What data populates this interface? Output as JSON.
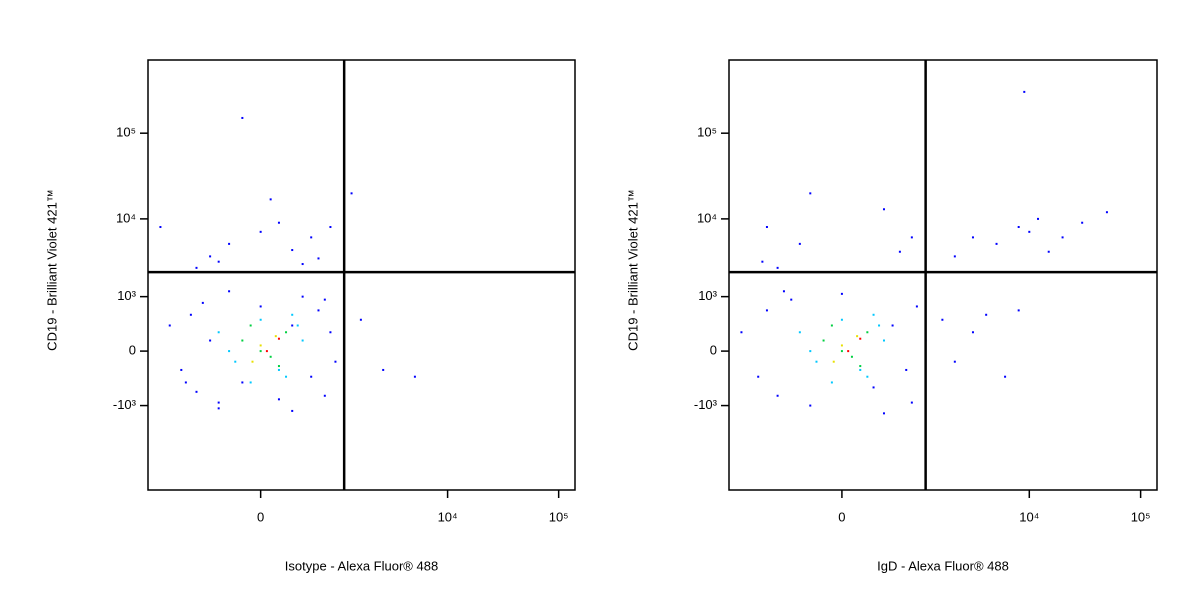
{
  "chart_data": [
    {
      "type": "scatter",
      "x_label": "Isotype - Alexa Fluor® 488",
      "y_label": "CD19 - Brilliant Violet 421™",
      "scale": "biexponential",
      "xlim": [
        -2000,
        140000
      ],
      "ylim": [
        -12000,
        700000
      ],
      "xticks": [
        0,
        {
          "value": 10000,
          "label": "10⁴"
        },
        {
          "value": 100000,
          "label": "10⁵"
        }
      ],
      "yticks": [
        {
          "value": -1000,
          "label": "-10³"
        },
        0,
        {
          "value": 1000,
          "label": "10³"
        },
        {
          "value": 10000,
          "label": "10⁴"
        },
        {
          "value": 100000,
          "label": "10⁵"
        }
      ],
      "quadrant": {
        "x": 1000,
        "y": 2200
      },
      "series": [
        {
          "color": "#0000ff",
          "x": [
            -1200,
            -900,
            -700,
            -600,
            -500,
            -400,
            -300,
            -200,
            -100,
            0,
            100,
            200,
            300,
            400,
            500,
            600,
            700,
            800,
            -800,
            -300,
            200,
            600,
            1500,
            2500,
            5000,
            -400,
            -200,
            0,
            200,
            400,
            -300,
            100,
            300,
            500,
            -100,
            50,
            -600,
            700,
            1200,
            -1500
          ],
          "y": [
            300,
            -200,
            500,
            -600,
            800,
            100,
            -900,
            1200,
            -400,
            700,
            -800,
            300,
            1000,
            -300,
            600,
            -700,
            200,
            -100,
            -400,
            -1100,
            -1200,
            900,
            400,
            -200,
            -300,
            3500,
            5000,
            7000,
            4200,
            6000,
            3000,
            9000,
            2800,
            3300,
            150000,
            17000,
            2500,
            8000,
            20000,
            8000
          ]
        },
        {
          "color": "#00c8ff",
          "x": [
            -300,
            -150,
            0,
            150,
            300,
            -200,
            100,
            250,
            -50,
            200
          ],
          "y": [
            200,
            -100,
            400,
            -300,
            100,
            0,
            -200,
            300,
            -400,
            500
          ]
        },
        {
          "color": "#00d040",
          "x": [
            -100,
            50,
            150,
            0,
            -50,
            100
          ],
          "y": [
            100,
            -50,
            200,
            0,
            300,
            -150
          ]
        },
        {
          "color": "#e8e000",
          "x": [
            0,
            80,
            -40
          ],
          "y": [
            50,
            150,
            -100
          ]
        },
        {
          "color": "#ff0000",
          "x": [
            30,
            100
          ],
          "y": [
            0,
            120
          ]
        }
      ]
    },
    {
      "type": "scatter",
      "x_label": "IgD - Alexa Fluor® 488",
      "y_label": "CD19 - Brilliant Violet 421™",
      "scale": "biexponential",
      "xlim": [
        -2000,
        140000
      ],
      "ylim": [
        -12000,
        700000
      ],
      "xticks": [
        0,
        {
          "value": 10000,
          "label": "10⁴"
        },
        {
          "value": 100000,
          "label": "10⁵"
        }
      ],
      "yticks": [
        {
          "value": -1000,
          "label": "-10³"
        },
        0,
        {
          "value": 1000,
          "label": "10³"
        },
        {
          "value": 10000,
          "label": "10⁴"
        },
        {
          "value": 100000,
          "label": "10⁵"
        }
      ],
      "quadrant": {
        "x": 1000,
        "y": 2200
      },
      "series": [
        {
          "color": "#0000ff",
          "x": [
            -1500,
            -1000,
            -800,
            -600,
            -400,
            -200,
            0,
            200,
            400,
            600,
            800,
            1000,
            1500,
            2000,
            3000,
            4000,
            6000,
            8000,
            -500,
            300,
            700,
            -900,
            -300,
            500,
            -600,
            2000,
            3000,
            5000,
            8000,
            10000,
            12000,
            15000,
            20000,
            30000,
            50000,
            -800,
            -200,
            300,
            700,
            9000
          ],
          "y": [
            200,
            -300,
            600,
            -700,
            900,
            -1000,
            1100,
            -500,
            300,
            -200,
            700,
            100,
            400,
            -100,
            200,
            500,
            -300,
            600,
            1200,
            -1300,
            -900,
            3000,
            5000,
            4000,
            2500,
            3500,
            6000,
            5000,
            8000,
            7000,
            10000,
            4000,
            6000,
            9000,
            12000,
            8000,
            20000,
            13000,
            6000,
            300000
          ]
        },
        {
          "color": "#00c8ff",
          "x": [
            -300,
            -150,
            0,
            150,
            300,
            -200,
            100,
            250,
            -50,
            200
          ],
          "y": [
            200,
            -100,
            400,
            -300,
            100,
            0,
            -200,
            300,
            -400,
            500
          ]
        },
        {
          "color": "#00d040",
          "x": [
            -100,
            50,
            150,
            0,
            -50,
            100
          ],
          "y": [
            100,
            -50,
            200,
            0,
            300,
            -150
          ]
        },
        {
          "color": "#e8e000",
          "x": [
            0,
            80,
            -40
          ],
          "y": [
            50,
            150,
            -100
          ]
        },
        {
          "color": "#ff0000",
          "x": [
            30,
            100
          ],
          "y": [
            0,
            120
          ]
        }
      ]
    }
  ]
}
